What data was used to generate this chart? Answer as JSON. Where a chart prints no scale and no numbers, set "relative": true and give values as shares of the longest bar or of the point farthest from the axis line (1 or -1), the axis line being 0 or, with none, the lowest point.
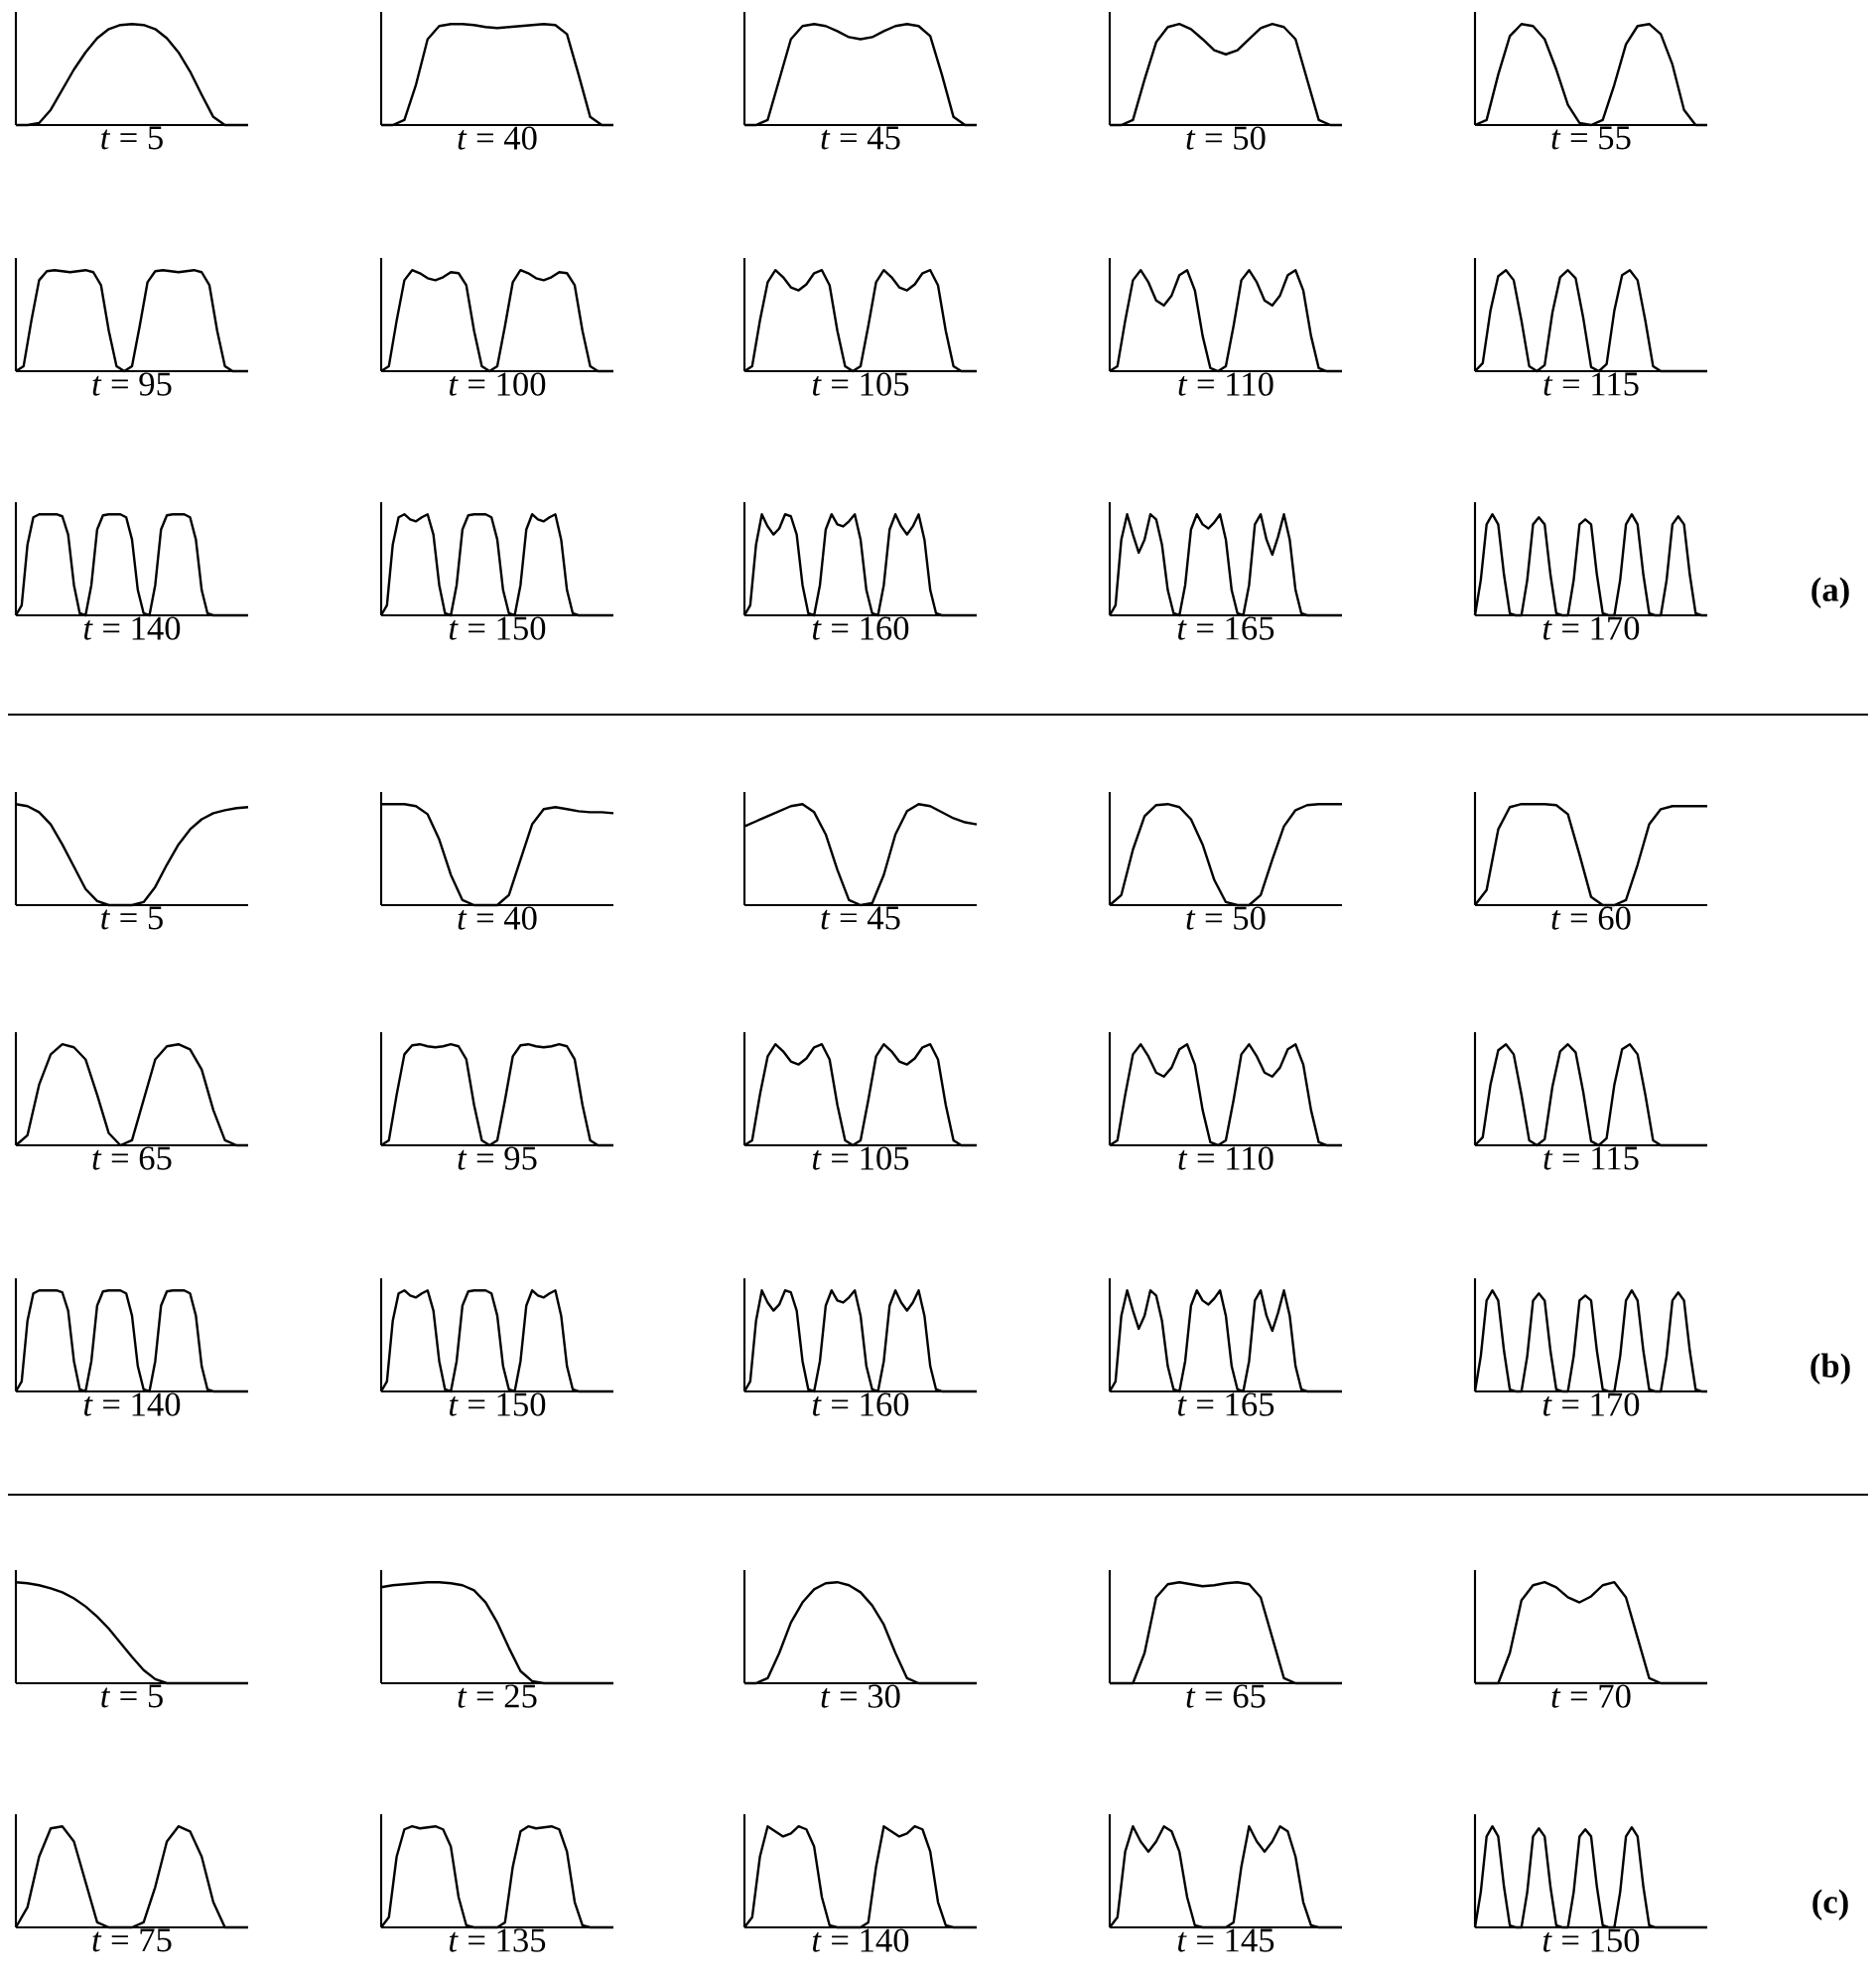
{
  "chart_data": [
    {
      "type": "line",
      "title": "*t* = 5",
      "relative": true,
      "color": "#000000",
      "categories": [
        null,
        null,
        null,
        null,
        null,
        null,
        null,
        null,
        null,
        null,
        null,
        null,
        null,
        null,
        null,
        null,
        null,
        null,
        null,
        null,
        null
      ],
      "values": [
        0,
        0,
        0.02,
        0.15,
        0.35,
        0.55,
        0.72,
        0.86,
        0.95,
        0.99,
        1,
        0.99,
        0.95,
        0.86,
        0.72,
        0.53,
        0.3,
        0.08,
        0,
        0,
        0
      ]
    },
    {
      "type": "line",
      "title": "*t* = 40",
      "relative": true,
      "color": "#000000",
      "categories": [
        null,
        null,
        null,
        null,
        null,
        null,
        null,
        null,
        null,
        null,
        null,
        null,
        null,
        null,
        null,
        null,
        null,
        null,
        null,
        null,
        null
      ],
      "values": [
        0,
        0,
        0.05,
        0.4,
        0.85,
        0.98,
        1,
        1,
        0.99,
        0.97,
        0.96,
        0.97,
        0.98,
        0.99,
        1,
        0.99,
        0.9,
        0.5,
        0.08,
        0,
        0
      ]
    },
    {
      "type": "line",
      "title": "*t* = 45",
      "relative": true,
      "color": "#000000",
      "categories": [
        null,
        null,
        null,
        null,
        null,
        null,
        null,
        null,
        null,
        null,
        null,
        null,
        null,
        null,
        null,
        null,
        null,
        null,
        null,
        null,
        null
      ],
      "values": [
        0,
        0,
        0.05,
        0.45,
        0.85,
        0.98,
        1,
        0.98,
        0.93,
        0.87,
        0.85,
        0.87,
        0.93,
        0.98,
        1,
        0.98,
        0.88,
        0.5,
        0.08,
        0,
        0
      ]
    },
    {
      "type": "line",
      "title": "*t* = 50",
      "relative": true,
      "color": "#000000",
      "categories": [
        null,
        null,
        null,
        null,
        null,
        null,
        null,
        null,
        null,
        null,
        null,
        null,
        null,
        null,
        null,
        null,
        null,
        null,
        null,
        null,
        null
      ],
      "values": [
        0,
        0,
        0.05,
        0.45,
        0.82,
        0.97,
        1,
        0.95,
        0.85,
        0.74,
        0.7,
        0.74,
        0.85,
        0.96,
        1,
        0.97,
        0.85,
        0.45,
        0.05,
        0,
        0
      ]
    },
    {
      "type": "line",
      "title": "*t* = 55",
      "relative": true,
      "color": "#000000",
      "categories": [
        null,
        null,
        null,
        null,
        null,
        null,
        null,
        null,
        null,
        null,
        null,
        null,
        null,
        null,
        null,
        null,
        null,
        null,
        null,
        null,
        null
      ],
      "values": [
        0,
        0.05,
        0.5,
        0.88,
        1,
        0.98,
        0.85,
        0.55,
        0.2,
        0.02,
        0,
        0.05,
        0.4,
        0.8,
        0.98,
        1,
        0.9,
        0.6,
        0.15,
        0,
        0
      ]
    },
    {
      "type": "line",
      "title": "*t* = 95",
      "relative": true,
      "color": "#000000",
      "categories": [
        null,
        null,
        null,
        null,
        null,
        null,
        null,
        null,
        null,
        null,
        null,
        null,
        null,
        null,
        null,
        null,
        null,
        null,
        null,
        null,
        null,
        null,
        null,
        null,
        null,
        null,
        null,
        null,
        null,
        null,
        null
      ],
      "values": [
        0,
        0.05,
        0.5,
        0.9,
        0.99,
        1,
        0.99,
        0.98,
        0.99,
        1,
        0.98,
        0.85,
        0.4,
        0.05,
        0,
        0.05,
        0.45,
        0.88,
        0.99,
        1,
        0.99,
        0.98,
        0.99,
        1,
        0.98,
        0.85,
        0.4,
        0.05,
        0,
        0,
        0
      ]
    },
    {
      "type": "line",
      "title": "*t* = 100",
      "relative": true,
      "color": "#000000",
      "categories": [
        null,
        null,
        null,
        null,
        null,
        null,
        null,
        null,
        null,
        null,
        null,
        null,
        null,
        null,
        null,
        null,
        null,
        null,
        null,
        null,
        null,
        null,
        null,
        null,
        null,
        null,
        null,
        null,
        null,
        null,
        null
      ],
      "values": [
        0,
        0.05,
        0.5,
        0.9,
        1,
        0.97,
        0.92,
        0.9,
        0.93,
        0.98,
        0.97,
        0.85,
        0.4,
        0.05,
        0,
        0.05,
        0.45,
        0.88,
        1,
        0.97,
        0.92,
        0.9,
        0.93,
        0.98,
        0.97,
        0.85,
        0.4,
        0.05,
        0,
        0,
        0
      ]
    },
    {
      "type": "line",
      "title": "*t* = 105",
      "relative": true,
      "color": "#000000",
      "categories": [
        null,
        null,
        null,
        null,
        null,
        null,
        null,
        null,
        null,
        null,
        null,
        null,
        null,
        null,
        null,
        null,
        null,
        null,
        null,
        null,
        null,
        null,
        null,
        null,
        null,
        null,
        null,
        null,
        null,
        null,
        null
      ],
      "values": [
        0,
        0.05,
        0.5,
        0.88,
        1,
        0.93,
        0.83,
        0.8,
        0.86,
        0.97,
        1,
        0.85,
        0.4,
        0.05,
        0,
        0.05,
        0.45,
        0.88,
        1,
        0.93,
        0.83,
        0.8,
        0.86,
        0.97,
        1,
        0.85,
        0.4,
        0.05,
        0,
        0,
        0
      ]
    },
    {
      "type": "line",
      "title": "*t* = 110",
      "relative": true,
      "color": "#000000",
      "categories": [
        null,
        null,
        null,
        null,
        null,
        null,
        null,
        null,
        null,
        null,
        null,
        null,
        null,
        null,
        null,
        null,
        null,
        null,
        null,
        null,
        null,
        null,
        null,
        null,
        null,
        null,
        null,
        null,
        null,
        null,
        null
      ],
      "values": [
        0,
        0.05,
        0.5,
        0.9,
        1,
        0.88,
        0.7,
        0.65,
        0.75,
        0.95,
        1,
        0.8,
        0.35,
        0.03,
        0,
        0.05,
        0.45,
        0.9,
        1,
        0.88,
        0.7,
        0.65,
        0.75,
        0.95,
        1,
        0.8,
        0.35,
        0.03,
        0,
        0,
        0
      ]
    },
    {
      "type": "line",
      "title": "*t* = 115",
      "relative": true,
      "color": "#000000",
      "categories": [
        null,
        null,
        null,
        null,
        null,
        null,
        null,
        null,
        null,
        null,
        null,
        null,
        null,
        null,
        null,
        null,
        null,
        null,
        null,
        null,
        null,
        null,
        null,
        null,
        null,
        null,
        null,
        null,
        null,
        null,
        null
      ],
      "values": [
        0,
        0.08,
        0.6,
        0.94,
        1,
        0.9,
        0.5,
        0.05,
        0,
        0.06,
        0.58,
        0.93,
        1,
        0.92,
        0.52,
        0.04,
        0,
        0.07,
        0.6,
        0.95,
        1,
        0.9,
        0.5,
        0.05,
        0,
        0,
        0,
        0,
        0,
        0,
        0
      ]
    },
    {
      "type": "line",
      "title": "*t* = 140",
      "relative": true,
      "color": "#000000",
      "categories": [
        null,
        null,
        null,
        null,
        null,
        null,
        null,
        null,
        null,
        null,
        null,
        null,
        null,
        null,
        null,
        null,
        null,
        null,
        null,
        null,
        null,
        null,
        null,
        null,
        null,
        null,
        null,
        null,
        null,
        null,
        null,
        null,
        null,
        null,
        null,
        null,
        null,
        null,
        null,
        null,
        null
      ],
      "values": [
        0,
        0.1,
        0.7,
        0.97,
        1,
        1,
        1,
        1,
        0.98,
        0.8,
        0.3,
        0.02,
        0,
        0.3,
        0.85,
        0.99,
        1,
        1,
        1,
        0.97,
        0.75,
        0.25,
        0.02,
        0,
        0.3,
        0.85,
        0.99,
        1,
        1,
        1,
        0.97,
        0.75,
        0.25,
        0.02,
        0,
        0,
        0,
        0,
        0,
        0,
        0
      ]
    },
    {
      "type": "line",
      "title": "*t* = 150",
      "relative": true,
      "color": "#000000",
      "categories": [
        null,
        null,
        null,
        null,
        null,
        null,
        null,
        null,
        null,
        null,
        null,
        null,
        null,
        null,
        null,
        null,
        null,
        null,
        null,
        null,
        null,
        null,
        null,
        null,
        null,
        null,
        null,
        null,
        null,
        null,
        null,
        null,
        null,
        null,
        null,
        null,
        null,
        null,
        null,
        null,
        null
      ],
      "values": [
        0,
        0.1,
        0.7,
        0.97,
        1,
        0.95,
        0.93,
        0.97,
        1,
        0.8,
        0.3,
        0.02,
        0,
        0.3,
        0.85,
        0.99,
        1,
        1,
        1,
        0.97,
        0.75,
        0.25,
        0.02,
        0,
        0.3,
        0.85,
        1,
        0.95,
        0.93,
        0.97,
        1,
        0.75,
        0.25,
        0.02,
        0,
        0,
        0,
        0,
        0,
        0,
        0
      ]
    },
    {
      "type": "line",
      "title": "*t* = 160",
      "relative": true,
      "color": "#000000",
      "categories": [
        null,
        null,
        null,
        null,
        null,
        null,
        null,
        null,
        null,
        null,
        null,
        null,
        null,
        null,
        null,
        null,
        null,
        null,
        null,
        null,
        null,
        null,
        null,
        null,
        null,
        null,
        null,
        null,
        null,
        null,
        null,
        null,
        null,
        null,
        null,
        null,
        null,
        null,
        null,
        null,
        null
      ],
      "values": [
        0,
        0.1,
        0.7,
        1,
        0.88,
        0.8,
        0.86,
        1,
        0.98,
        0.8,
        0.3,
        0.02,
        0,
        0.3,
        0.85,
        1,
        0.9,
        0.88,
        0.93,
        1,
        0.75,
        0.25,
        0.02,
        0,
        0.3,
        0.85,
        1,
        0.88,
        0.8,
        0.88,
        1,
        0.75,
        0.25,
        0.02,
        0,
        0,
        0,
        0,
        0,
        0,
        0
      ]
    },
    {
      "type": "line",
      "title": "*t* = 165",
      "relative": true,
      "color": "#000000",
      "categories": [
        null,
        null,
        null,
        null,
        null,
        null,
        null,
        null,
        null,
        null,
        null,
        null,
        null,
        null,
        null,
        null,
        null,
        null,
        null,
        null,
        null,
        null,
        null,
        null,
        null,
        null,
        null,
        null,
        null,
        null,
        null,
        null,
        null,
        null,
        null,
        null,
        null,
        null,
        null,
        null,
        null
      ],
      "values": [
        0,
        0.1,
        0.75,
        1,
        0.8,
        0.62,
        0.75,
        1,
        0.95,
        0.7,
        0.25,
        0.02,
        0,
        0.3,
        0.85,
        1,
        0.9,
        0.86,
        0.92,
        1,
        0.75,
        0.25,
        0.02,
        0,
        0.3,
        0.9,
        1,
        0.75,
        0.6,
        0.78,
        1,
        0.75,
        0.25,
        0.02,
        0,
        0,
        0,
        0,
        0,
        0,
        0
      ]
    },
    {
      "type": "line",
      "title": "*t* = 170",
      "relative": true,
      "color": "#000000",
      "annotations": [
        "(a)"
      ],
      "categories": [
        null,
        null,
        null,
        null,
        null,
        null,
        null,
        null,
        null,
        null,
        null,
        null,
        null,
        null,
        null,
        null,
        null,
        null,
        null,
        null,
        null,
        null,
        null,
        null,
        null,
        null,
        null,
        null,
        null,
        null,
        null,
        null,
        null,
        null,
        null,
        null,
        null,
        null,
        null,
        null,
        null
      ],
      "values": [
        0,
        0.35,
        0.9,
        1,
        0.9,
        0.4,
        0.02,
        0,
        0,
        0.35,
        0.9,
        0.97,
        0.9,
        0.4,
        0.02,
        0,
        0,
        0.35,
        0.9,
        0.95,
        0.9,
        0.4,
        0.02,
        0,
        0,
        0.35,
        0.9,
        1,
        0.9,
        0.4,
        0.02,
        0,
        0,
        0.35,
        0.9,
        0.98,
        0.9,
        0.4,
        0.02,
        0,
        0
      ]
    },
    {
      "type": "line",
      "title": "*t* = 5",
      "relative": true,
      "color": "#000000",
      "categories": [
        null,
        null,
        null,
        null,
        null,
        null,
        null,
        null,
        null,
        null,
        null,
        null,
        null,
        null,
        null,
        null,
        null,
        null,
        null,
        null,
        null
      ],
      "values": [
        1,
        0.98,
        0.92,
        0.8,
        0.6,
        0.38,
        0.16,
        0.04,
        0,
        0,
        0,
        0.03,
        0.18,
        0.4,
        0.6,
        0.75,
        0.85,
        0.91,
        0.94,
        0.96,
        0.97
      ]
    },
    {
      "type": "line",
      "title": "*t* = 40",
      "relative": true,
      "color": "#000000",
      "categories": [
        null,
        null,
        null,
        null,
        null,
        null,
        null,
        null,
        null,
        null,
        null,
        null,
        null,
        null,
        null,
        null,
        null,
        null,
        null,
        null,
        null
      ],
      "values": [
        1,
        1,
        1,
        0.98,
        0.9,
        0.65,
        0.3,
        0.05,
        0,
        0,
        0,
        0.1,
        0.45,
        0.8,
        0.95,
        0.97,
        0.95,
        0.93,
        0.92,
        0.92,
        0.91
      ]
    },
    {
      "type": "line",
      "title": "*t* = 45",
      "relative": true,
      "color": "#000000",
      "categories": [
        null,
        null,
        null,
        null,
        null,
        null,
        null,
        null,
        null,
        null,
        null,
        null,
        null,
        null,
        null,
        null,
        null,
        null,
        null,
        null,
        null
      ],
      "values": [
        0.78,
        0.83,
        0.88,
        0.93,
        0.98,
        1,
        0.92,
        0.7,
        0.35,
        0.05,
        0,
        0.02,
        0.3,
        0.7,
        0.93,
        1,
        0.98,
        0.92,
        0.86,
        0.82,
        0.8
      ]
    },
    {
      "type": "line",
      "title": "*t* = 50",
      "relative": true,
      "color": "#000000",
      "categories": [
        null,
        null,
        null,
        null,
        null,
        null,
        null,
        null,
        null,
        null,
        null,
        null,
        null,
        null,
        null,
        null,
        null,
        null,
        null,
        null,
        null
      ],
      "values": [
        0,
        0.1,
        0.55,
        0.88,
        0.99,
        1,
        0.97,
        0.85,
        0.6,
        0.25,
        0.03,
        0,
        0,
        0.1,
        0.45,
        0.78,
        0.94,
        0.99,
        1,
        1,
        1
      ]
    },
    {
      "type": "line",
      "title": "*t* = 60",
      "relative": true,
      "color": "#000000",
      "categories": [
        null,
        null,
        null,
        null,
        null,
        null,
        null,
        null,
        null,
        null,
        null,
        null,
        null,
        null,
        null,
        null,
        null,
        null,
        null,
        null,
        null
      ],
      "values": [
        0,
        0.15,
        0.75,
        0.97,
        1,
        1,
        1,
        0.99,
        0.9,
        0.5,
        0.08,
        0,
        0,
        0.05,
        0.4,
        0.8,
        0.95,
        0.98,
        0.98,
        0.98,
        0.98
      ]
    },
    {
      "type": "line",
      "title": "*t* = 65",
      "relative": true,
      "color": "#000000",
      "categories": [
        null,
        null,
        null,
        null,
        null,
        null,
        null,
        null,
        null,
        null,
        null,
        null,
        null,
        null,
        null,
        null,
        null,
        null,
        null,
        null,
        null
      ],
      "values": [
        0,
        0.1,
        0.6,
        0.9,
        1,
        0.97,
        0.85,
        0.5,
        0.12,
        0,
        0.05,
        0.45,
        0.85,
        0.98,
        1,
        0.95,
        0.75,
        0.35,
        0.05,
        0,
        0
      ]
    },
    {
      "type": "line",
      "title": "*t* = 95",
      "relative": true,
      "color": "#000000",
      "categories": [
        null,
        null,
        null,
        null,
        null,
        null,
        null,
        null,
        null,
        null,
        null,
        null,
        null,
        null,
        null,
        null,
        null,
        null,
        null,
        null,
        null,
        null,
        null,
        null,
        null,
        null,
        null,
        null,
        null,
        null,
        null
      ],
      "values": [
        0,
        0.05,
        0.5,
        0.9,
        0.99,
        1,
        0.98,
        0.97,
        0.98,
        1,
        0.98,
        0.85,
        0.4,
        0.05,
        0,
        0.05,
        0.45,
        0.88,
        0.99,
        1,
        0.98,
        0.97,
        0.98,
        1,
        0.98,
        0.85,
        0.4,
        0.05,
        0,
        0,
        0
      ]
    },
    {
      "type": "line",
      "title": "*t* = 105",
      "relative": true,
      "color": "#000000",
      "categories": [
        null,
        null,
        null,
        null,
        null,
        null,
        null,
        null,
        null,
        null,
        null,
        null,
        null,
        null,
        null,
        null,
        null,
        null,
        null,
        null,
        null,
        null,
        null,
        null,
        null,
        null,
        null,
        null,
        null,
        null,
        null
      ],
      "values": [
        0,
        0.05,
        0.5,
        0.88,
        1,
        0.93,
        0.83,
        0.8,
        0.86,
        0.97,
        1,
        0.85,
        0.4,
        0.05,
        0,
        0.05,
        0.45,
        0.88,
        1,
        0.93,
        0.83,
        0.8,
        0.86,
        0.97,
        1,
        0.85,
        0.4,
        0.05,
        0,
        0,
        0
      ]
    },
    {
      "type": "line",
      "title": "*t* = 110",
      "relative": true,
      "color": "#000000",
      "categories": [
        null,
        null,
        null,
        null,
        null,
        null,
        null,
        null,
        null,
        null,
        null,
        null,
        null,
        null,
        null,
        null,
        null,
        null,
        null,
        null,
        null,
        null,
        null,
        null,
        null,
        null,
        null,
        null,
        null,
        null,
        null
      ],
      "values": [
        0,
        0.05,
        0.5,
        0.9,
        1,
        0.88,
        0.72,
        0.68,
        0.77,
        0.95,
        1,
        0.8,
        0.35,
        0.03,
        0,
        0.05,
        0.45,
        0.9,
        1,
        0.88,
        0.72,
        0.68,
        0.77,
        0.95,
        1,
        0.8,
        0.35,
        0.03,
        0,
        0,
        0
      ]
    },
    {
      "type": "line",
      "title": "*t* = 115",
      "relative": true,
      "color": "#000000",
      "categories": [
        null,
        null,
        null,
        null,
        null,
        null,
        null,
        null,
        null,
        null,
        null,
        null,
        null,
        null,
        null,
        null,
        null,
        null,
        null,
        null,
        null,
        null,
        null,
        null,
        null,
        null,
        null,
        null,
        null,
        null,
        null
      ],
      "values": [
        0,
        0.08,
        0.6,
        0.94,
        1,
        0.9,
        0.5,
        0.05,
        0,
        0.06,
        0.58,
        0.93,
        1,
        0.92,
        0.52,
        0.04,
        0,
        0.07,
        0.6,
        0.95,
        1,
        0.9,
        0.5,
        0.05,
        0,
        0,
        0,
        0,
        0,
        0,
        0
      ]
    },
    {
      "type": "line",
      "title": "*t* = 140",
      "relative": true,
      "color": "#000000",
      "categories": [
        null,
        null,
        null,
        null,
        null,
        null,
        null,
        null,
        null,
        null,
        null,
        null,
        null,
        null,
        null,
        null,
        null,
        null,
        null,
        null,
        null,
        null,
        null,
        null,
        null,
        null,
        null,
        null,
        null,
        null,
        null,
        null,
        null,
        null,
        null,
        null,
        null,
        null,
        null,
        null,
        null
      ],
      "values": [
        0,
        0.1,
        0.7,
        0.97,
        1,
        1,
        1,
        1,
        0.98,
        0.8,
        0.3,
        0.02,
        0,
        0.3,
        0.85,
        0.99,
        1,
        1,
        1,
        0.97,
        0.75,
        0.25,
        0.02,
        0,
        0.3,
        0.85,
        0.99,
        1,
        1,
        1,
        0.97,
        0.75,
        0.25,
        0.02,
        0,
        0,
        0,
        0,
        0,
        0,
        0
      ]
    },
    {
      "type": "line",
      "title": "*t* = 150",
      "relative": true,
      "color": "#000000",
      "categories": [
        null,
        null,
        null,
        null,
        null,
        null,
        null,
        null,
        null,
        null,
        null,
        null,
        null,
        null,
        null,
        null,
        null,
        null,
        null,
        null,
        null,
        null,
        null,
        null,
        null,
        null,
        null,
        null,
        null,
        null,
        null,
        null,
        null,
        null,
        null,
        null,
        null,
        null,
        null,
        null,
        null
      ],
      "values": [
        0,
        0.1,
        0.7,
        0.97,
        1,
        0.95,
        0.93,
        0.97,
        1,
        0.8,
        0.3,
        0.02,
        0,
        0.3,
        0.85,
        0.99,
        1,
        1,
        1,
        0.97,
        0.75,
        0.25,
        0.02,
        0,
        0.3,
        0.85,
        1,
        0.95,
        0.93,
        0.97,
        1,
        0.75,
        0.25,
        0.02,
        0,
        0,
        0,
        0,
        0,
        0,
        0
      ]
    },
    {
      "type": "line",
      "title": "*t* = 160",
      "relative": true,
      "color": "#000000",
      "categories": [
        null,
        null,
        null,
        null,
        null,
        null,
        null,
        null,
        null,
        null,
        null,
        null,
        null,
        null,
        null,
        null,
        null,
        null,
        null,
        null,
        null,
        null,
        null,
        null,
        null,
        null,
        null,
        null,
        null,
        null,
        null,
        null,
        null,
        null,
        null,
        null,
        null,
        null,
        null,
        null,
        null
      ],
      "values": [
        0,
        0.1,
        0.7,
        1,
        0.88,
        0.8,
        0.86,
        1,
        0.98,
        0.8,
        0.3,
        0.02,
        0,
        0.3,
        0.85,
        1,
        0.9,
        0.88,
        0.93,
        1,
        0.75,
        0.25,
        0.02,
        0,
        0.3,
        0.85,
        1,
        0.88,
        0.8,
        0.88,
        1,
        0.75,
        0.25,
        0.02,
        0,
        0,
        0,
        0,
        0,
        0,
        0
      ]
    },
    {
      "type": "line",
      "title": "*t* = 165",
      "relative": true,
      "color": "#000000",
      "categories": [
        null,
        null,
        null,
        null,
        null,
        null,
        null,
        null,
        null,
        null,
        null,
        null,
        null,
        null,
        null,
        null,
        null,
        null,
        null,
        null,
        null,
        null,
        null,
        null,
        null,
        null,
        null,
        null,
        null,
        null,
        null,
        null,
        null,
        null,
        null,
        null,
        null,
        null,
        null,
        null,
        null
      ],
      "values": [
        0,
        0.1,
        0.75,
        1,
        0.8,
        0.62,
        0.75,
        1,
        0.95,
        0.7,
        0.25,
        0.02,
        0,
        0.3,
        0.85,
        1,
        0.9,
        0.86,
        0.92,
        1,
        0.75,
        0.25,
        0.02,
        0,
        0.3,
        0.9,
        1,
        0.75,
        0.6,
        0.78,
        1,
        0.75,
        0.25,
        0.02,
        0,
        0,
        0,
        0,
        0,
        0,
        0
      ]
    },
    {
      "type": "line",
      "title": "*t* = 170",
      "relative": true,
      "color": "#000000",
      "annotations": [
        "(b)"
      ],
      "categories": [
        null,
        null,
        null,
        null,
        null,
        null,
        null,
        null,
        null,
        null,
        null,
        null,
        null,
        null,
        null,
        null,
        null,
        null,
        null,
        null,
        null,
        null,
        null,
        null,
        null,
        null,
        null,
        null,
        null,
        null,
        null,
        null,
        null,
        null,
        null,
        null,
        null,
        null,
        null,
        null,
        null
      ],
      "values": [
        0,
        0.35,
        0.9,
        1,
        0.9,
        0.4,
        0.02,
        0,
        0,
        0.35,
        0.9,
        0.97,
        0.9,
        0.4,
        0.02,
        0,
        0,
        0.35,
        0.9,
        0.95,
        0.9,
        0.4,
        0.02,
        0,
        0,
        0.35,
        0.9,
        1,
        0.9,
        0.4,
        0.02,
        0,
        0,
        0.35,
        0.9,
        0.98,
        0.9,
        0.4,
        0.02,
        0,
        0
      ]
    },
    {
      "type": "line",
      "title": "*t* = 5",
      "relative": true,
      "color": "#000000",
      "categories": [
        null,
        null,
        null,
        null,
        null,
        null,
        null,
        null,
        null,
        null,
        null,
        null,
        null,
        null,
        null,
        null,
        null,
        null,
        null,
        null,
        null
      ],
      "values": [
        1,
        0.99,
        0.97,
        0.94,
        0.9,
        0.84,
        0.76,
        0.66,
        0.54,
        0.4,
        0.26,
        0.13,
        0.04,
        0,
        0,
        0,
        0,
        0,
        0,
        0,
        0
      ]
    },
    {
      "type": "line",
      "title": "*t* = 25",
      "relative": true,
      "color": "#000000",
      "categories": [
        null,
        null,
        null,
        null,
        null,
        null,
        null,
        null,
        null,
        null,
        null,
        null,
        null,
        null,
        null,
        null,
        null,
        null,
        null,
        null,
        null
      ],
      "values": [
        0.95,
        0.97,
        0.98,
        0.99,
        1,
        1,
        0.99,
        0.97,
        0.92,
        0.8,
        0.6,
        0.35,
        0.12,
        0.02,
        0,
        0,
        0,
        0,
        0,
        0,
        0
      ]
    },
    {
      "type": "line",
      "title": "*t* = 30",
      "relative": true,
      "color": "#000000",
      "categories": [
        null,
        null,
        null,
        null,
        null,
        null,
        null,
        null,
        null,
        null,
        null,
        null,
        null,
        null,
        null,
        null,
        null,
        null,
        null,
        null,
        null
      ],
      "values": [
        0,
        0,
        0.05,
        0.3,
        0.6,
        0.8,
        0.93,
        0.99,
        1,
        0.97,
        0.9,
        0.77,
        0.58,
        0.3,
        0.05,
        0,
        0,
        0,
        0,
        0,
        0
      ]
    },
    {
      "type": "line",
      "title": "*t* = 65",
      "relative": true,
      "color": "#000000",
      "categories": [
        null,
        null,
        null,
        null,
        null,
        null,
        null,
        null,
        null,
        null,
        null,
        null,
        null,
        null,
        null,
        null,
        null,
        null,
        null,
        null,
        null
      ],
      "values": [
        0,
        0,
        0,
        0.3,
        0.85,
        0.98,
        1,
        0.98,
        0.96,
        0.97,
        0.99,
        1,
        0.98,
        0.85,
        0.45,
        0.05,
        0,
        0,
        0,
        0,
        0
      ]
    },
    {
      "type": "line",
      "title": "*t* = 70",
      "relative": true,
      "color": "#000000",
      "categories": [
        null,
        null,
        null,
        null,
        null,
        null,
        null,
        null,
        null,
        null,
        null,
        null,
        null,
        null,
        null,
        null,
        null,
        null,
        null,
        null,
        null
      ],
      "values": [
        0,
        0,
        0,
        0.3,
        0.82,
        0.97,
        1,
        0.95,
        0.85,
        0.8,
        0.86,
        0.97,
        1,
        0.85,
        0.45,
        0.05,
        0,
        0,
        0,
        0,
        0
      ]
    },
    {
      "type": "line",
      "title": "*t* = 75",
      "relative": true,
      "color": "#000000",
      "categories": [
        null,
        null,
        null,
        null,
        null,
        null,
        null,
        null,
        null,
        null,
        null,
        null,
        null,
        null,
        null,
        null,
        null,
        null,
        null,
        null,
        null
      ],
      "values": [
        0,
        0.2,
        0.7,
        0.98,
        1,
        0.85,
        0.45,
        0.05,
        0,
        0,
        0,
        0.05,
        0.4,
        0.85,
        1,
        0.95,
        0.7,
        0.25,
        0,
        0,
        0
      ]
    },
    {
      "type": "line",
      "title": "*t* = 135",
      "relative": true,
      "color": "#000000",
      "categories": [
        null,
        null,
        null,
        null,
        null,
        null,
        null,
        null,
        null,
        null,
        null,
        null,
        null,
        null,
        null,
        null,
        null,
        null,
        null,
        null,
        null,
        null,
        null,
        null,
        null,
        null,
        null,
        null,
        null,
        null,
        null
      ],
      "values": [
        0,
        0.1,
        0.7,
        0.97,
        1,
        0.98,
        0.99,
        1,
        0.97,
        0.8,
        0.3,
        0.02,
        0,
        0,
        0,
        0,
        0.05,
        0.6,
        0.95,
        1,
        0.98,
        0.99,
        1,
        0.97,
        0.75,
        0.25,
        0.02,
        0,
        0,
        0,
        0
      ]
    },
    {
      "type": "line",
      "title": "*t* = 140",
      "relative": true,
      "color": "#000000",
      "categories": [
        null,
        null,
        null,
        null,
        null,
        null,
        null,
        null,
        null,
        null,
        null,
        null,
        null,
        null,
        null,
        null,
        null,
        null,
        null,
        null,
        null,
        null,
        null,
        null,
        null,
        null,
        null,
        null,
        null,
        null,
        null
      ],
      "values": [
        0,
        0.1,
        0.7,
        1,
        0.95,
        0.9,
        0.93,
        1,
        0.97,
        0.8,
        0.3,
        0.02,
        0,
        0,
        0,
        0,
        0.05,
        0.6,
        1,
        0.95,
        0.9,
        0.93,
        1,
        0.97,
        0.75,
        0.25,
        0.02,
        0,
        0,
        0,
        0
      ]
    },
    {
      "type": "line",
      "title": "*t* = 145",
      "relative": true,
      "color": "#000000",
      "categories": [
        null,
        null,
        null,
        null,
        null,
        null,
        null,
        null,
        null,
        null,
        null,
        null,
        null,
        null,
        null,
        null,
        null,
        null,
        null,
        null,
        null,
        null,
        null,
        null,
        null,
        null,
        null,
        null,
        null,
        null,
        null
      ],
      "values": [
        0,
        0.1,
        0.75,
        1,
        0.85,
        0.75,
        0.85,
        1,
        0.95,
        0.75,
        0.3,
        0.02,
        0,
        0,
        0,
        0,
        0.05,
        0.6,
        1,
        0.85,
        0.75,
        0.85,
        1,
        0.95,
        0.7,
        0.25,
        0.02,
        0,
        0,
        0,
        0
      ]
    },
    {
      "type": "line",
      "title": "*t* = 150",
      "relative": true,
      "color": "#000000",
      "annotations": [
        "(c)"
      ],
      "categories": [
        null,
        null,
        null,
        null,
        null,
        null,
        null,
        null,
        null,
        null,
        null,
        null,
        null,
        null,
        null,
        null,
        null,
        null,
        null,
        null,
        null,
        null,
        null,
        null,
        null,
        null,
        null,
        null,
        null,
        null,
        null,
        null,
        null,
        null,
        null,
        null,
        null,
        null,
        null,
        null,
        null
      ],
      "values": [
        0,
        0.35,
        0.9,
        1,
        0.9,
        0.4,
        0.02,
        0,
        0,
        0.35,
        0.9,
        0.98,
        0.9,
        0.4,
        0.02,
        0,
        0,
        0.35,
        0.9,
        0.97,
        0.9,
        0.4,
        0.02,
        0,
        0,
        0.35,
        0.9,
        0.99,
        0.9,
        0.4,
        0.02,
        0,
        0,
        0,
        0,
        0,
        0,
        0,
        0,
        0,
        0
      ]
    }
  ]
}
